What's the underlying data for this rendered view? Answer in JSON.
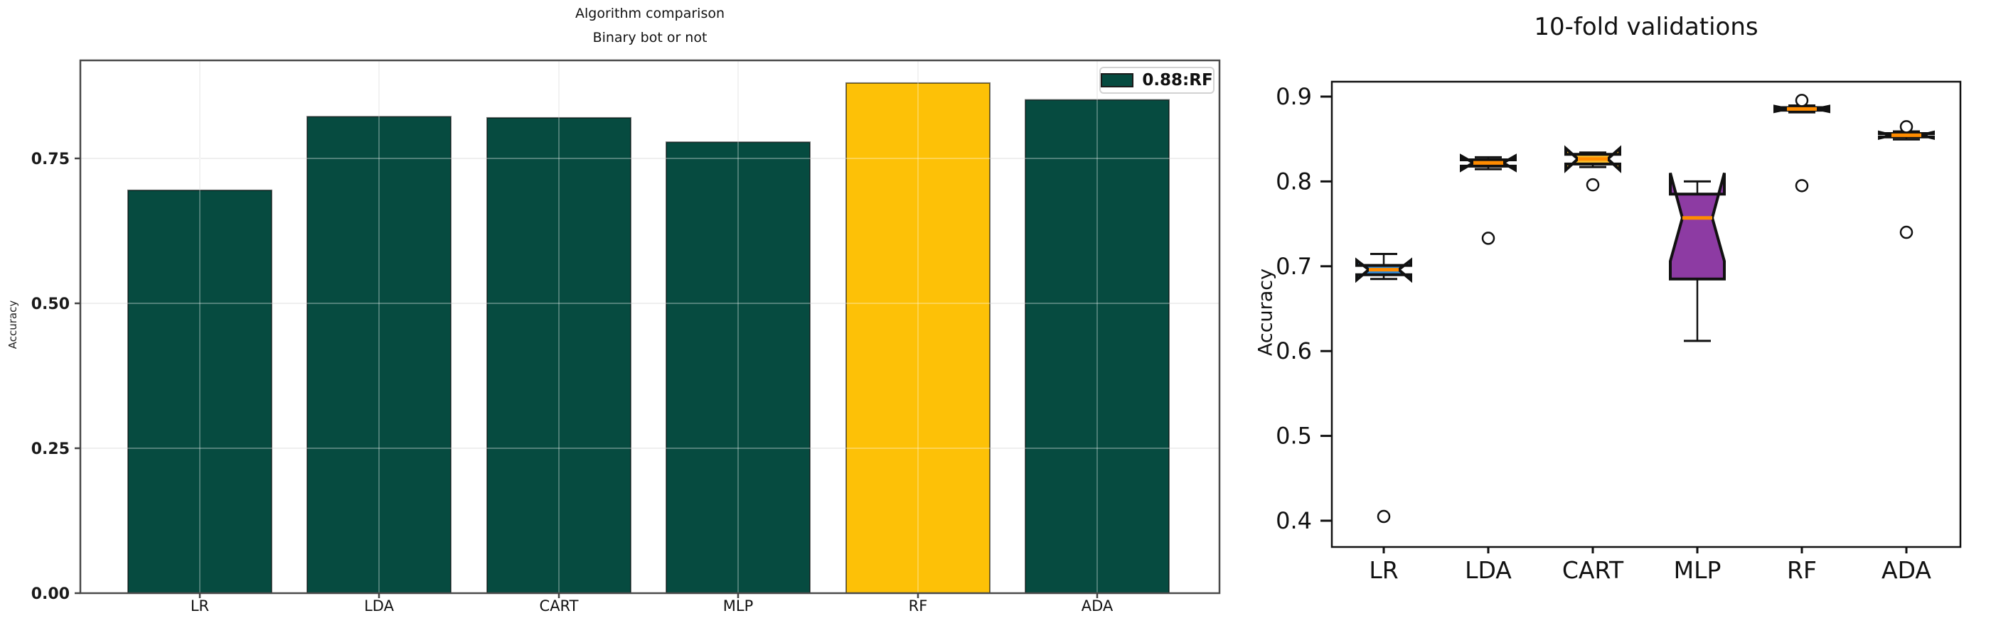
{
  "figure": {
    "background": "#ffffff"
  },
  "chart_data": [
    {
      "type": "bar",
      "title": "Algorithm comparison",
      "subtitle": "Binary bot or not",
      "ylabel": "Accuracy",
      "categories": [
        "LR",
        "LDA",
        "CART",
        "MLP",
        "RF",
        "ADA"
      ],
      "values": [
        0.695,
        0.822,
        0.82,
        0.778,
        0.88,
        0.851
      ],
      "colors": [
        "#064b40",
        "#064b40",
        "#064b40",
        "#064b40",
        "#fdc107",
        "#064b40"
      ],
      "highlight_index": 4,
      "bar_edge_color": "rgba(0,0,0,0.55)",
      "yticks": [
        0.0,
        0.25,
        0.5,
        0.75
      ],
      "ytick_labels": [
        "0.00",
        "0.25",
        "0.50",
        "0.75"
      ],
      "ylim": [
        0,
        0.92
      ],
      "grid": true,
      "grid_color": "#e8e8e8",
      "spine_color": "#4a4a4a",
      "legend": {
        "label": "0.88:RF",
        "swatch_color": "#064b40",
        "position": "upper right"
      }
    },
    {
      "type": "boxplot",
      "title": "10-fold validations",
      "ylabel": "Accuracy",
      "categories": [
        "LR",
        "LDA",
        "CART",
        "MLP",
        "RF",
        "ADA"
      ],
      "yticks": [
        0.4,
        0.5,
        0.6,
        0.7,
        0.8,
        0.9
      ],
      "ytick_labels": [
        "0.4",
        "0.5",
        "0.6",
        "0.7",
        "0.8",
        "0.9"
      ],
      "ylim": [
        0.38,
        0.916
      ],
      "grid": false,
      "notched": true,
      "median_color": "#ff8c00",
      "edge_color": "#111111",
      "outlier_style": "open-circle",
      "series": [
        {
          "name": "LR",
          "whislo": 0.685,
          "q1": 0.69,
          "med": 0.696,
          "q3": 0.701,
          "whishi": 0.7145,
          "notch_lo": 0.684,
          "notch_hi": 0.707,
          "outliers": [
            0.405
          ],
          "color": "#2e89da"
        },
        {
          "name": "LDA",
          "whislo": 0.8145,
          "q1": 0.818,
          "med": 0.822,
          "q3": 0.8255,
          "whishi": 0.8285,
          "notch_lo": 0.8135,
          "notch_hi": 0.83,
          "outliers": [
            0.733
          ],
          "color": "#f47b0b"
        },
        {
          "name": "CART",
          "whislo": 0.817,
          "q1": 0.8205,
          "med": 0.8265,
          "q3": 0.832,
          "whishi": 0.834,
          "notch_lo": 0.8135,
          "notch_hi": 0.839,
          "outliers": [
            0.796
          ],
          "color": "#fdc02f"
        },
        {
          "name": "MLP",
          "whislo": 0.612,
          "q1": 0.685,
          "med": 0.757,
          "q3": 0.785,
          "whishi": 0.8,
          "notch_lo": 0.706,
          "notch_hi": 0.81,
          "outliers": [],
          "color": "#8d3ba3"
        },
        {
          "name": "RF",
          "whislo": 0.8815,
          "q1": 0.884,
          "med": 0.8855,
          "q3": 0.887,
          "whishi": 0.8895,
          "notch_lo": 0.8825,
          "notch_hi": 0.8885,
          "outliers": [
            0.8955,
            0.795
          ],
          "color": "#4daf4a"
        },
        {
          "name": "ADA",
          "whislo": 0.8495,
          "q1": 0.8525,
          "med": 0.8545,
          "q3": 0.8565,
          "whishi": 0.859,
          "notch_lo": 0.851,
          "notch_hi": 0.858,
          "outliers": [
            0.8645,
            0.74
          ],
          "color": "#e74c3c"
        }
      ]
    }
  ]
}
